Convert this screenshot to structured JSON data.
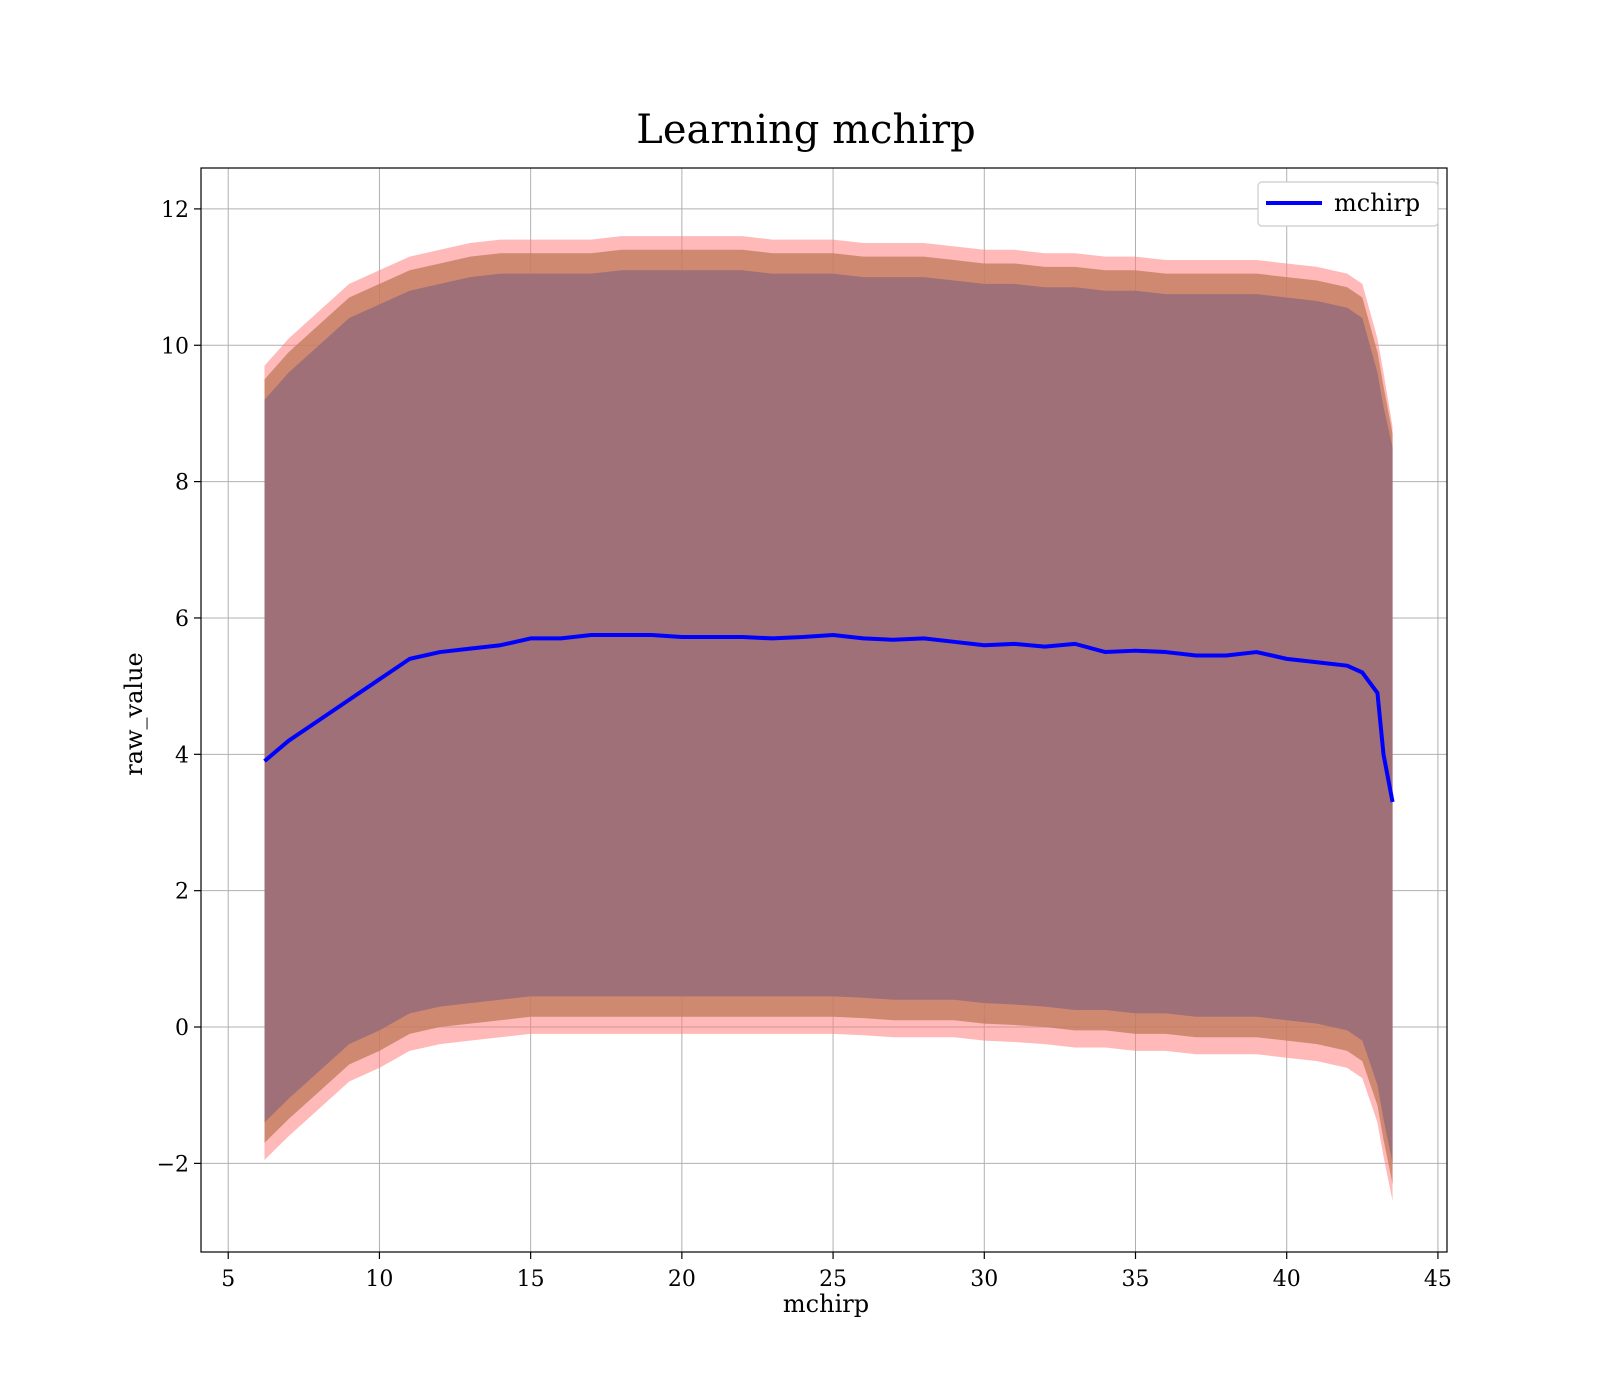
{
  "chart_data": {
    "type": "line",
    "title": "Learning mchirp",
    "xlabel": "mchirp",
    "ylabel": "raw_value",
    "xlim": [
      4.1,
      45.3
    ],
    "ylim": [
      -3.3,
      12.6
    ],
    "xticks": [
      5,
      10,
      15,
      20,
      25,
      30,
      35,
      40,
      45
    ],
    "yticks": [
      -2,
      0,
      2,
      4,
      6,
      8,
      10,
      12
    ],
    "ytick_labels": [
      "−2",
      "0",
      "2",
      "4",
      "6",
      "8",
      "10",
      "12"
    ],
    "grid": true,
    "legend": {
      "placement": "top-right",
      "entries": [
        "mchirp"
      ]
    },
    "colors": {
      "line": "#0000ff",
      "band_outer": "#ff8080",
      "band_middle": "#c07a5a",
      "band_inner": "#a07078"
    },
    "series": [
      {
        "name": "mchirp",
        "x": [
          6.2,
          7.0,
          8.0,
          9.0,
          10.0,
          11.0,
          12.0,
          13.0,
          14.0,
          15.0,
          16.0,
          17.0,
          18.0,
          19.0,
          20.0,
          21.0,
          22.0,
          23.0,
          24.0,
          25.0,
          26.0,
          27.0,
          28.0,
          29.0,
          30.0,
          31.0,
          32.0,
          33.0,
          34.0,
          35.0,
          36.0,
          37.0,
          38.0,
          39.0,
          40.0,
          41.0,
          42.0,
          42.5,
          43.0,
          43.2,
          43.5
        ],
        "y": [
          3.9,
          4.2,
          4.5,
          4.8,
          5.1,
          5.4,
          5.5,
          5.55,
          5.6,
          5.7,
          5.7,
          5.75,
          5.75,
          5.75,
          5.72,
          5.72,
          5.72,
          5.7,
          5.72,
          5.75,
          5.7,
          5.68,
          5.7,
          5.65,
          5.6,
          5.62,
          5.58,
          5.62,
          5.5,
          5.52,
          5.5,
          5.45,
          5.45,
          5.5,
          5.4,
          5.35,
          5.3,
          5.2,
          4.9,
          4.0,
          3.3
        ]
      }
    ],
    "bands": [
      {
        "role": "outer",
        "upper": [
          9.7,
          10.1,
          10.5,
          10.9,
          11.1,
          11.3,
          11.4,
          11.5,
          11.55,
          11.55,
          11.55,
          11.55,
          11.6,
          11.6,
          11.6,
          11.6,
          11.6,
          11.55,
          11.55,
          11.55,
          11.5,
          11.5,
          11.5,
          11.45,
          11.4,
          11.4,
          11.35,
          11.35,
          11.3,
          11.3,
          11.25,
          11.25,
          11.25,
          11.25,
          11.2,
          11.15,
          11.05,
          10.9,
          10.1,
          9.6,
          8.8
        ],
        "lower": [
          -1.95,
          -1.6,
          -1.2,
          -0.8,
          -0.6,
          -0.35,
          -0.25,
          -0.2,
          -0.15,
          -0.1,
          -0.1,
          -0.1,
          -0.1,
          -0.1,
          -0.1,
          -0.1,
          -0.1,
          -0.1,
          -0.1,
          -0.1,
          -0.12,
          -0.15,
          -0.15,
          -0.15,
          -0.2,
          -0.22,
          -0.25,
          -0.3,
          -0.3,
          -0.35,
          -0.35,
          -0.4,
          -0.4,
          -0.4,
          -0.45,
          -0.5,
          -0.6,
          -0.75,
          -1.4,
          -1.9,
          -2.55
        ]
      },
      {
        "role": "middle",
        "upper": [
          9.5,
          9.9,
          10.3,
          10.7,
          10.9,
          11.1,
          11.2,
          11.3,
          11.35,
          11.35,
          11.35,
          11.35,
          11.4,
          11.4,
          11.4,
          11.4,
          11.4,
          11.35,
          11.35,
          11.35,
          11.3,
          11.3,
          11.3,
          11.25,
          11.2,
          11.2,
          11.15,
          11.15,
          11.1,
          11.1,
          11.05,
          11.05,
          11.05,
          11.05,
          11.0,
          10.95,
          10.85,
          10.7,
          9.9,
          9.4,
          8.7
        ],
        "lower": [
          -1.7,
          -1.35,
          -0.95,
          -0.55,
          -0.35,
          -0.1,
          0.0,
          0.05,
          0.1,
          0.15,
          0.15,
          0.15,
          0.15,
          0.15,
          0.15,
          0.15,
          0.15,
          0.15,
          0.15,
          0.15,
          0.13,
          0.1,
          0.1,
          0.1,
          0.05,
          0.03,
          0.0,
          -0.05,
          -0.05,
          -0.1,
          -0.1,
          -0.15,
          -0.15,
          -0.15,
          -0.2,
          -0.25,
          -0.35,
          -0.5,
          -1.15,
          -1.65,
          -2.3
        ]
      },
      {
        "role": "inner",
        "upper": [
          9.2,
          9.6,
          10.0,
          10.4,
          10.6,
          10.8,
          10.9,
          11.0,
          11.05,
          11.05,
          11.05,
          11.05,
          11.1,
          11.1,
          11.1,
          11.1,
          11.1,
          11.05,
          11.05,
          11.05,
          11.0,
          11.0,
          11.0,
          10.95,
          10.9,
          10.9,
          10.85,
          10.85,
          10.8,
          10.8,
          10.75,
          10.75,
          10.75,
          10.75,
          10.7,
          10.65,
          10.55,
          10.4,
          9.6,
          9.1,
          8.5
        ],
        "lower": [
          -1.4,
          -1.05,
          -0.65,
          -0.25,
          -0.05,
          0.2,
          0.3,
          0.35,
          0.4,
          0.45,
          0.45,
          0.45,
          0.45,
          0.45,
          0.45,
          0.45,
          0.45,
          0.45,
          0.45,
          0.45,
          0.43,
          0.4,
          0.4,
          0.4,
          0.35,
          0.33,
          0.3,
          0.25,
          0.25,
          0.2,
          0.2,
          0.15,
          0.15,
          0.15,
          0.1,
          0.05,
          -0.05,
          -0.2,
          -0.85,
          -1.35,
          -2.0
        ]
      }
    ]
  }
}
